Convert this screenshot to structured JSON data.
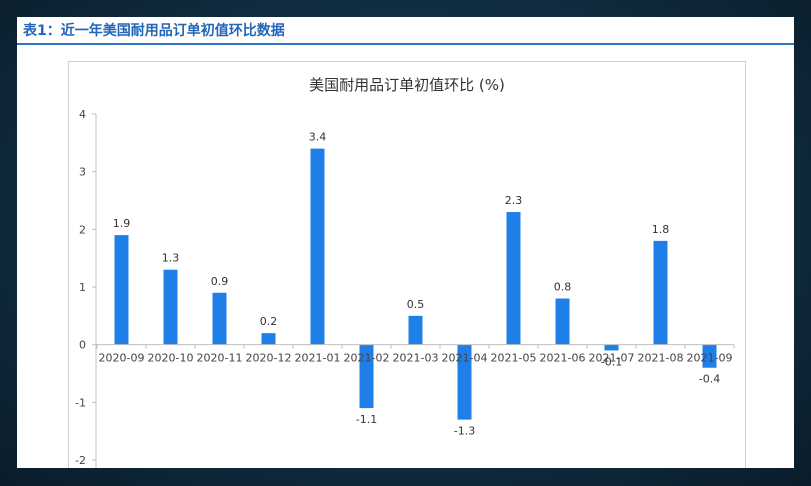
{
  "header": {
    "title": "表1：近一年美国耐用品订单初值环比数据"
  },
  "chart_data": {
    "type": "bar",
    "title": "美国耐用品订单初值环比 (%)",
    "categories": [
      "2020-09",
      "2020-10",
      "2020-11",
      "2020-12",
      "2021-01",
      "2021-02",
      "2021-03",
      "2021-04",
      "2021-05",
      "2021-06",
      "2021-07",
      "2021-08",
      "2021-09"
    ],
    "values": [
      1.9,
      1.3,
      0.9,
      0.2,
      3.4,
      -1.1,
      0.5,
      -1.3,
      2.3,
      0.8,
      -0.1,
      1.8,
      -0.4
    ],
    "data_labels": [
      "1.9",
      "1.3",
      "0.9",
      "0.2",
      "3.4",
      "-1.1",
      "0.5",
      "-1.3",
      "2.3",
      "0.8",
      "-0.1",
      "1.8",
      "-0.4"
    ],
    "ylim": [
      -2,
      4
    ],
    "yticks": [
      4,
      3,
      2,
      1,
      0,
      -1,
      -2
    ],
    "ytick_labels": [
      "4",
      "3",
      "2",
      "1",
      "0",
      "-1",
      "-2"
    ],
    "bar_color": "#1f7fe8",
    "grid": false,
    "legend": "none",
    "xlabel": "",
    "ylabel": ""
  }
}
